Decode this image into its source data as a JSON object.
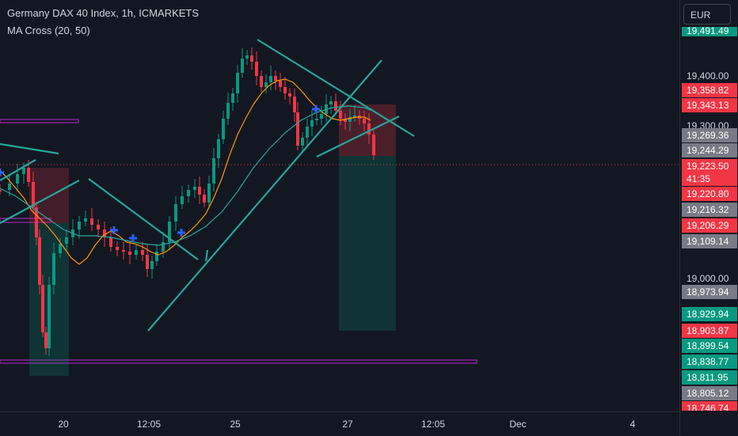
{
  "header": {
    "symbol_title": "Germany DAX 40 Index, 1h, ICMARKETS",
    "indicator": "MA Cross (20, 50)"
  },
  "price_axis": {
    "currency": "EUR",
    "top_partial": "19,491.49",
    "grid_labels": [
      "19,400.00",
      "19,300.00",
      "19,000.00"
    ],
    "tags": [
      {
        "value": "19,358.82",
        "color": "#f23645"
      },
      {
        "value": "19,343.13",
        "color": "#f23645"
      },
      {
        "value": "19,269.36",
        "color": "#787b86"
      },
      {
        "value": "19,244.29",
        "color": "#787b86"
      },
      {
        "value": "19,223.50",
        "color": "#f23645"
      },
      {
        "value": "41:35",
        "color": "#f23645"
      },
      {
        "value": "19,220.80",
        "color": "#f23645"
      },
      {
        "value": "19,216.32",
        "color": "#787b86"
      },
      {
        "value": "19,206.29",
        "color": "#f23645"
      },
      {
        "value": "19,109.14",
        "color": "#787b86"
      },
      {
        "value": "18,973.94",
        "color": "#787b86"
      },
      {
        "value": "18,929.94",
        "color": "#089981"
      },
      {
        "value": "18,903.87",
        "color": "#f23645"
      },
      {
        "value": "18,899.54",
        "color": "#089981"
      },
      {
        "value": "18,838.77",
        "color": "#089981"
      },
      {
        "value": "18,811.95",
        "color": "#089981"
      },
      {
        "value": "18,805.12",
        "color": "#787b86"
      },
      {
        "value": "18,746.74",
        "color": "#f23645"
      }
    ]
  },
  "time_axis": {
    "labels": [
      "20",
      "12:05",
      "25",
      "27",
      "12:05",
      "Dec",
      "4"
    ]
  },
  "colors": {
    "bg": "#131722",
    "up": "#089981",
    "down": "#f23645",
    "ma_fast": "#ff9800",
    "ma_slow": "#26a69a",
    "trendline": "#26a69a",
    "level": "#9c27b0"
  }
}
